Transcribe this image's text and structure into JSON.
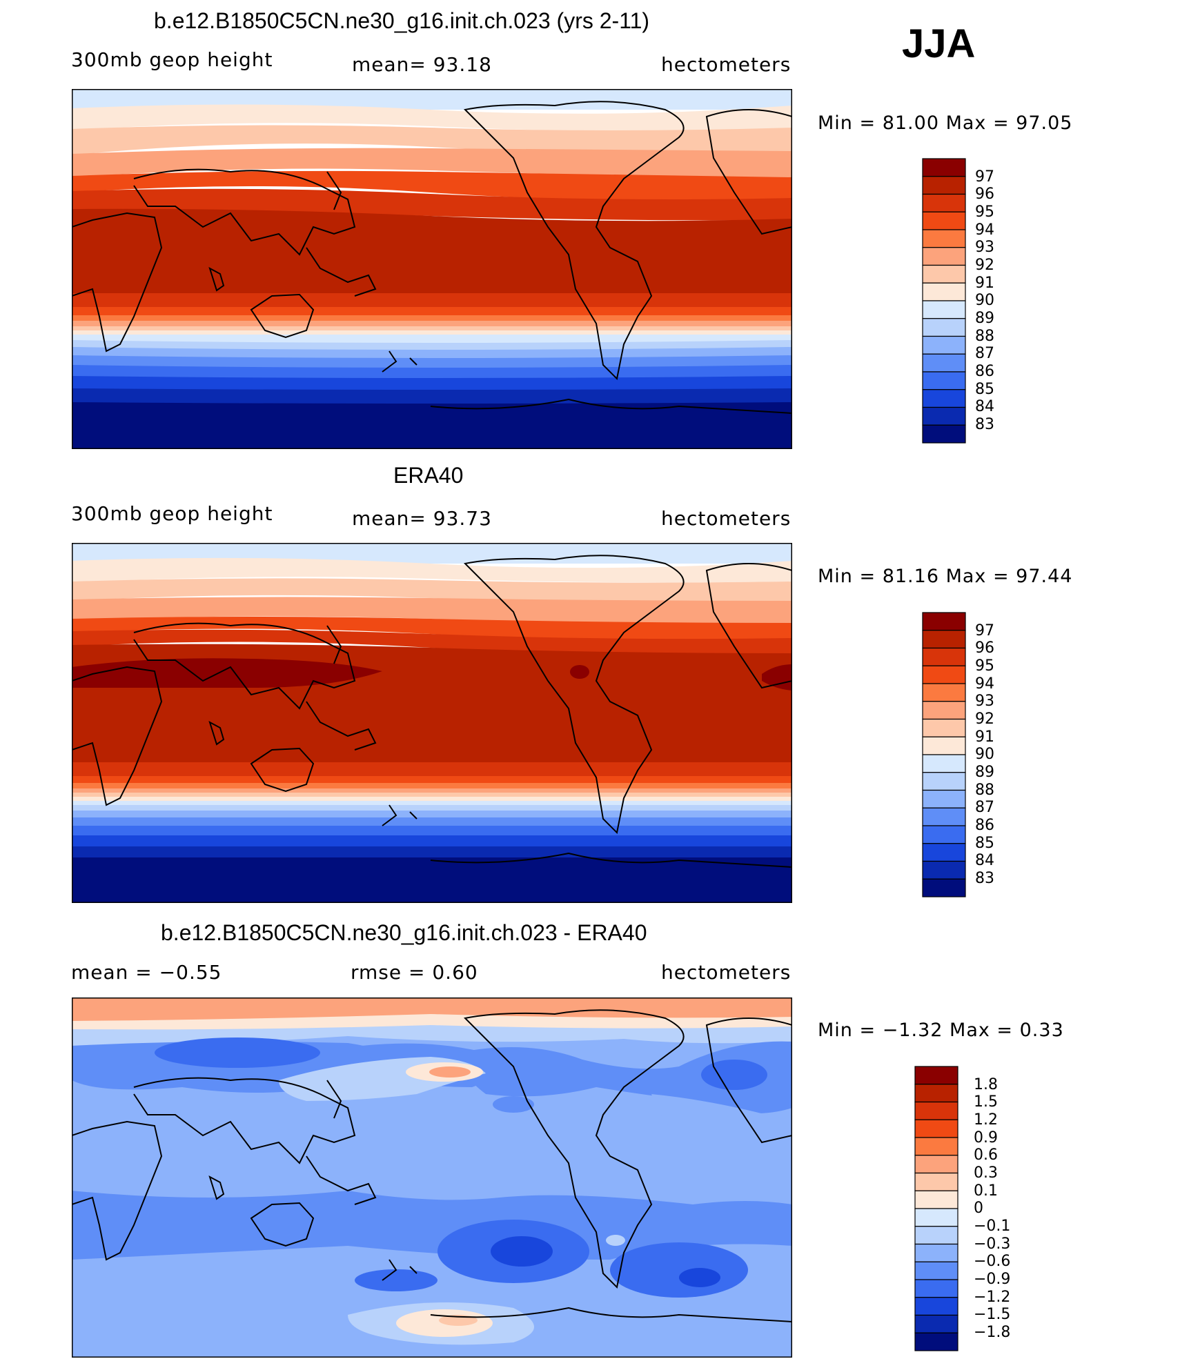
{
  "season": "JJA",
  "panels": [
    {
      "title": "b.e12.B1850C5CN.ne30_g16.init.ch.023 (yrs 2-11)",
      "left_label": "300mb  geop  height",
      "center_label": "mean=   93.18",
      "right_label": "hectometers",
      "minmax": "Min  =    81.00  Max  =    97.05"
    },
    {
      "title": "ERA40",
      "left_label": "300mb  geop  height",
      "center_label": "mean=   93.73",
      "right_label": "hectometers",
      "minmax": "Min  =    81.16  Max  =    97.44"
    },
    {
      "title": "b.e12.B1850C5CN.ne30_g16.init.ch.023 - ERA40",
      "left_label": "mean  =    −0.55",
      "center_label": "rmse  =     0.60",
      "right_label": "hectometers",
      "minmax": "Min  =   −1.32  Max  =     0.33"
    }
  ],
  "colorbar_abs": {
    "labels": [
      "97",
      "96",
      "95",
      "94",
      "93",
      "92",
      "91",
      "90",
      "89",
      "88",
      "87",
      "86",
      "85",
      "84",
      "83"
    ],
    "colors": [
      "#8a0000",
      "#b82200",
      "#d8340a",
      "#f04a14",
      "#fb7a40",
      "#fca37c",
      "#fdc8aa",
      "#fde8d8",
      "#d6e8fd",
      "#b8d2fb",
      "#8cb2fb",
      "#5f8ef7",
      "#3a6cf0",
      "#1846dc",
      "#0a2ab0",
      "#000d7c"
    ]
  },
  "colorbar_diff": {
    "labels": [
      "1.8",
      "1.5",
      "1.2",
      "0.9",
      "0.6",
      "0.3",
      "0.1",
      "0",
      "−0.1",
      "−0.3",
      "−0.6",
      "−0.9",
      "−1.2",
      "−1.5",
      "−1.8"
    ],
    "colors": [
      "#8a0000",
      "#b82200",
      "#d8340a",
      "#f04a14",
      "#fb7a40",
      "#fca37c",
      "#fdc8aa",
      "#fde8d8",
      "#d6e8fd",
      "#b8d2fb",
      "#8cb2fb",
      "#5f8ef7",
      "#3a6cf0",
      "#1846dc",
      "#0a2ab0",
      "#000d7c"
    ]
  },
  "map_data": [
    {
      "projection": "cylindrical-equidistant",
      "central_longitude": 150,
      "variable": "300mb geopotential height",
      "field": "model"
    },
    {
      "projection": "cylindrical-equidistant",
      "central_longitude": 150,
      "variable": "300mb geopotential height",
      "field": "reanalysis"
    },
    {
      "projection": "cylindrical-equidistant",
      "central_longitude": 150,
      "variable": "300mb geopotential height",
      "field": "difference"
    }
  ]
}
